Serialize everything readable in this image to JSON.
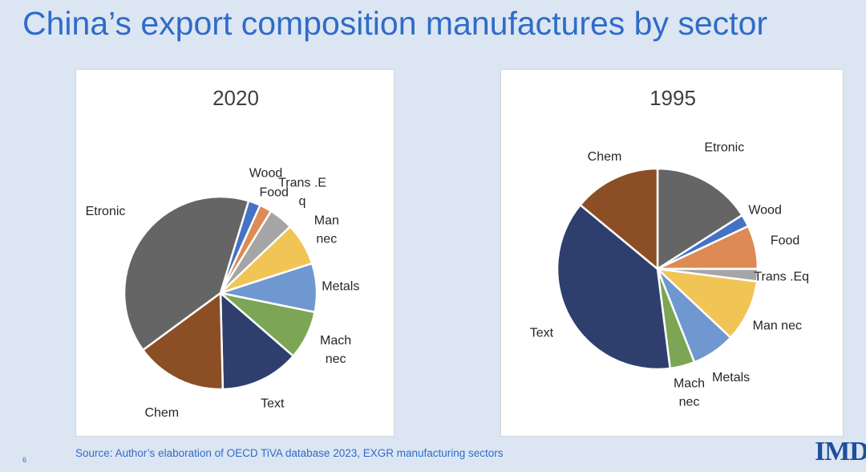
{
  "title": "China’s export composition manufactures by sector",
  "source": "Source: Author’s elaboration of OECD   TiVA database 2023, EXGR manufacturing sectors",
  "page_number": "6",
  "logo_text": "IMD",
  "colors": {
    "Etronic": "#656565",
    "Wood": "#4472c4",
    "Food": "#dd8a54",
    "Trans .Eq": "#a5a5a5",
    "Man nec": "#f0c556",
    "Metals": "#6f97d0",
    "Mach nec": "#7ca655",
    "Text": "#2e3f6d",
    "Chem": "#8b4e25"
  },
  "chart_data": [
    {
      "type": "pie",
      "title": "2020",
      "start_angle": 17,
      "slices": [
        {
          "name": "Wood",
          "label_lines": [
            "Wood"
          ],
          "value": 2
        },
        {
          "name": "Food",
          "label_lines": [
            "Food"
          ],
          "value": 2
        },
        {
          "name": "Trans .Eq",
          "label_lines": [
            "Trans .E",
            "q"
          ],
          "value": 4
        },
        {
          "name": "Man nec",
          "label_lines": [
            "Man",
            "nec"
          ],
          "value": 7
        },
        {
          "name": "Metals",
          "label_lines": [
            "Metals"
          ],
          "value": 8
        },
        {
          "name": "Mach nec",
          "label_lines": [
            "Mach",
            "nec"
          ],
          "value": 8
        },
        {
          "name": "Text",
          "label_lines": [
            "Text"
          ],
          "value": 13
        },
        {
          "name": "Chem",
          "label_lines": [
            "Chem"
          ],
          "value": 15
        },
        {
          "name": "Etronic",
          "label_lines": [
            "Etronic"
          ],
          "value": 39
        }
      ]
    },
    {
      "type": "pie",
      "title": "1995",
      "start_angle": 0,
      "slices": [
        {
          "name": "Etronic",
          "label_lines": [
            "Etronic"
          ],
          "value": 16
        },
        {
          "name": "Wood",
          "label_lines": [
            "Wood"
          ],
          "value": 2
        },
        {
          "name": "Food",
          "label_lines": [
            "Food"
          ],
          "value": 7
        },
        {
          "name": "Trans .Eq",
          "label_lines": [
            "Trans .Eq"
          ],
          "value": 2
        },
        {
          "name": "Man nec",
          "label_lines": [
            "Man nec"
          ],
          "value": 10
        },
        {
          "name": "Metals",
          "label_lines": [
            "Metals"
          ],
          "value": 7
        },
        {
          "name": "Mach nec",
          "label_lines": [
            "Mach",
            "nec"
          ],
          "value": 4
        },
        {
          "name": "Text",
          "label_lines": [
            "Text"
          ],
          "value": 38
        },
        {
          "name": "Chem",
          "label_lines": [
            "Chem"
          ],
          "value": 14
        }
      ]
    }
  ]
}
